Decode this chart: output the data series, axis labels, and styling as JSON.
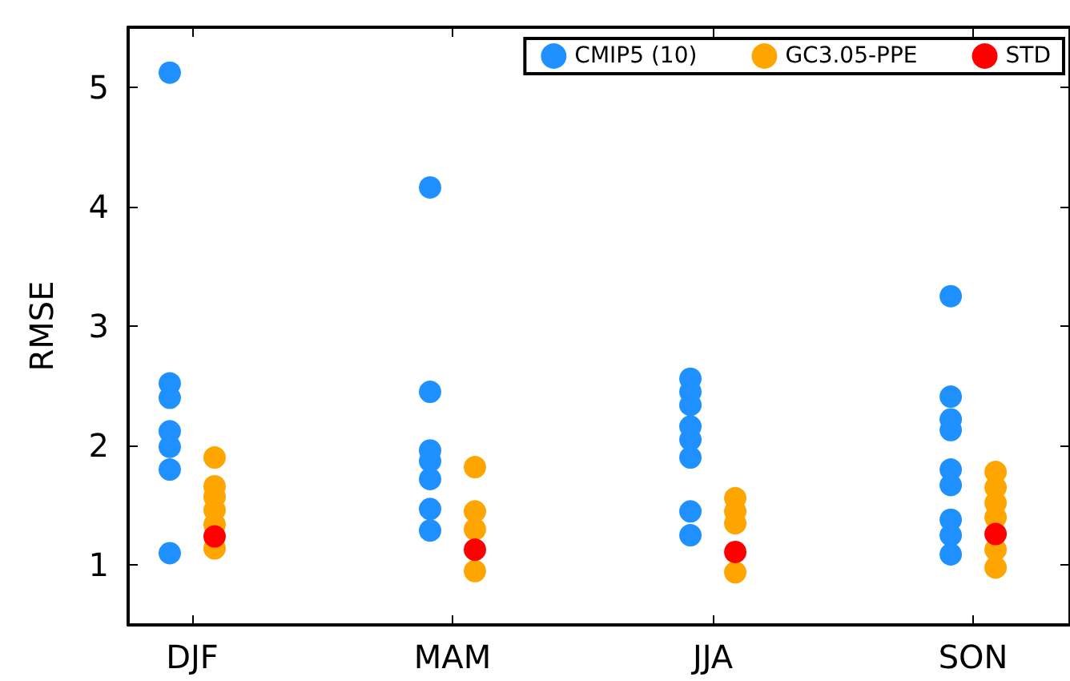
{
  "chart_data": {
    "type": "scatter",
    "ylabel": "RMSE",
    "categories": [
      "DJF",
      "MAM",
      "JJA",
      "SON"
    ],
    "ylim": [
      0.5,
      5.5
    ],
    "yticks": [
      1,
      2,
      3,
      4,
      5
    ],
    "grid": false,
    "legend": "top right",
    "marker": "circle",
    "series": [
      {
        "name": "CMIP5 (10)",
        "color": "#1e90ff",
        "x": [
          "DJF",
          "DJF",
          "DJF",
          "DJF",
          "DJF",
          "DJF",
          "DJF",
          "MAM",
          "MAM",
          "MAM",
          "MAM",
          "MAM",
          "MAM",
          "MAM",
          "JJA",
          "JJA",
          "JJA",
          "JJA",
          "JJA",
          "JJA",
          "JJA",
          "JJA",
          "SON",
          "SON",
          "SON",
          "SON",
          "SON",
          "SON",
          "SON",
          "SON",
          "SON"
        ],
        "values": [
          5.12,
          2.52,
          2.4,
          2.12,
          1.99,
          1.8,
          1.1,
          4.16,
          2.45,
          1.96,
          1.87,
          1.72,
          1.47,
          1.29,
          2.56,
          2.45,
          2.34,
          2.16,
          2.05,
          1.9,
          1.45,
          1.25,
          3.25,
          2.41,
          2.22,
          2.13,
          1.8,
          1.67,
          1.38,
          1.25,
          1.09
        ]
      },
      {
        "name": "GC3.05-PPE",
        "color": "#ffa500",
        "x": [
          "DJF",
          "DJF",
          "DJF",
          "DJF",
          "DJF",
          "DJF",
          "MAM",
          "MAM",
          "MAM",
          "MAM",
          "JJA",
          "JJA",
          "JJA",
          "JJA",
          "SON",
          "SON",
          "SON",
          "SON",
          "SON",
          "SON"
        ],
        "values": [
          1.9,
          1.66,
          1.57,
          1.46,
          1.34,
          1.14,
          1.82,
          1.45,
          1.3,
          0.95,
          1.56,
          1.45,
          1.35,
          0.94,
          1.78,
          1.65,
          1.52,
          1.4,
          1.13,
          0.98
        ]
      },
      {
        "name": "STD",
        "color": "#ff0000",
        "x": [
          "DJF",
          "MAM",
          "JJA",
          "SON"
        ],
        "values": [
          1.24,
          1.13,
          1.11,
          1.26
        ]
      }
    ]
  }
}
